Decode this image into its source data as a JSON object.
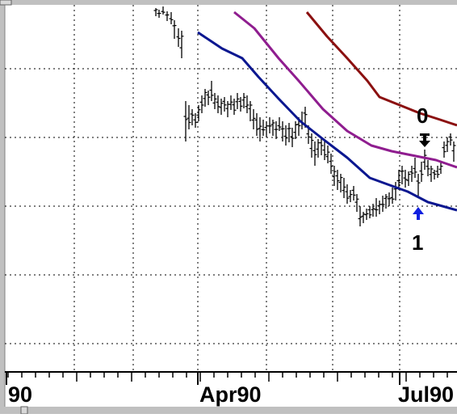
{
  "chart_data": {
    "type": "line",
    "title": "",
    "xlabel": "",
    "ylabel": "",
    "grid": true,
    "x_tick_labels": [
      "90",
      "Apr90",
      "Jul90"
    ],
    "series": [
      {
        "color": "#0b1790",
        "values": [
          [
            245,
            40
          ],
          [
            275,
            60
          ],
          [
            300,
            72
          ],
          [
            320,
            95
          ],
          [
            345,
            122
          ],
          [
            372,
            150
          ],
          [
            400,
            172
          ],
          [
            430,
            195
          ],
          [
            458,
            220
          ],
          [
            480,
            228
          ],
          [
            505,
            237
          ],
          [
            530,
            250
          ],
          [
            566,
            260
          ]
        ]
      },
      {
        "color": "#8f1d8f",
        "values": [
          [
            290,
            15
          ],
          [
            315,
            35
          ],
          [
            345,
            72
          ],
          [
            370,
            100
          ],
          [
            400,
            135
          ],
          [
            430,
            162
          ],
          [
            460,
            180
          ],
          [
            485,
            187
          ],
          [
            510,
            192
          ],
          [
            540,
            198
          ],
          [
            566,
            207
          ]
        ]
      },
      {
        "color": "#8b1010",
        "values": [
          [
            380,
            15
          ],
          [
            405,
            45
          ],
          [
            430,
            72
          ],
          [
            455,
            100
          ],
          [
            470,
            120
          ],
          [
            495,
            130
          ],
          [
            520,
            140
          ],
          [
            545,
            148
          ],
          [
            566,
            155
          ]
        ]
      }
    ],
    "price_bars": [
      [
        193,
        10,
        20
      ],
      [
        197,
        12,
        22
      ],
      [
        202,
        8,
        18
      ],
      [
        207,
        14,
        26
      ],
      [
        212,
        15,
        30
      ],
      [
        216,
        25,
        48
      ],
      [
        221,
        35,
        58
      ],
      [
        225,
        38,
        72
      ],
      [
        230,
        125,
        175
      ],
      [
        234,
        130,
        160
      ],
      [
        238,
        135,
        155
      ],
      [
        242,
        140,
        158
      ],
      [
        246,
        130,
        150
      ],
      [
        250,
        118,
        140
      ],
      [
        254,
        110,
        132
      ],
      [
        258,
        112,
        130
      ],
      [
        262,
        100,
        125
      ],
      [
        266,
        115,
        135
      ],
      [
        270,
        118,
        140
      ],
      [
        274,
        122,
        142
      ],
      [
        278,
        120,
        138
      ],
      [
        282,
        125,
        145
      ],
      [
        286,
        118,
        136
      ],
      [
        290,
        122,
        142
      ],
      [
        294,
        115,
        135
      ],
      [
        298,
        120,
        138
      ],
      [
        302,
        115,
        134
      ],
      [
        306,
        118,
        140
      ],
      [
        310,
        125,
        150
      ],
      [
        314,
        135,
        160
      ],
      [
        318,
        140,
        168
      ],
      [
        322,
        145,
        175
      ],
      [
        326,
        148,
        168
      ],
      [
        330,
        150,
        170
      ],
      [
        334,
        145,
        165
      ],
      [
        338,
        148,
        168
      ],
      [
        342,
        150,
        172
      ],
      [
        346,
        145,
        162
      ],
      [
        350,
        150,
        175
      ],
      [
        354,
        155,
        180
      ],
      [
        358,
        152,
        176
      ],
      [
        362,
        158,
        182
      ],
      [
        366,
        150,
        172
      ],
      [
        370,
        145,
        168
      ],
      [
        374,
        138,
        160
      ],
      [
        378,
        132,
        158
      ],
      [
        382,
        155,
        178
      ],
      [
        386,
        165,
        195
      ],
      [
        390,
        175,
        205
      ],
      [
        394,
        172,
        195
      ],
      [
        398,
        170,
        192
      ],
      [
        402,
        175,
        198
      ],
      [
        406,
        180,
        202
      ],
      [
        410,
        190,
        215
      ],
      [
        414,
        205,
        230
      ],
      [
        418,
        210,
        235
      ],
      [
        422,
        215,
        238
      ],
      [
        426,
        220,
        245
      ],
      [
        430,
        228,
        252
      ],
      [
        434,
        235,
        250
      ],
      [
        438,
        230,
        248
      ],
      [
        442,
        240,
        262
      ],
      [
        446,
        255,
        280
      ],
      [
        450,
        262,
        276
      ],
      [
        454,
        258,
        272
      ],
      [
        458,
        255,
        270
      ],
      [
        462,
        252,
        268
      ],
      [
        466,
        245,
        268
      ],
      [
        470,
        248,
        265
      ],
      [
        474,
        242,
        262
      ],
      [
        478,
        240,
        258
      ],
      [
        482,
        238,
        255
      ],
      [
        486,
        232,
        252
      ],
      [
        490,
        225,
        248
      ],
      [
        494,
        210,
        235
      ],
      [
        498,
        205,
        228
      ],
      [
        502,
        210,
        232
      ],
      [
        506,
        212,
        230
      ],
      [
        510,
        205,
        225
      ],
      [
        514,
        195,
        220
      ],
      [
        518,
        215,
        245
      ],
      [
        522,
        200,
        225
      ],
      [
        526,
        185,
        210
      ],
      [
        530,
        198,
        218
      ],
      [
        534,
        205,
        225
      ],
      [
        538,
        210,
        222
      ],
      [
        542,
        205,
        220
      ],
      [
        546,
        200,
        215
      ],
      [
        550,
        175,
        195
      ],
      [
        554,
        170,
        188
      ],
      [
        558,
        165,
        180
      ],
      [
        562,
        175,
        200
      ]
    ],
    "annotations": [
      {
        "text": "0",
        "arrow": "down",
        "color": "#000000"
      },
      {
        "text": "1",
        "arrow": "up",
        "color": "#1020e0"
      }
    ]
  }
}
